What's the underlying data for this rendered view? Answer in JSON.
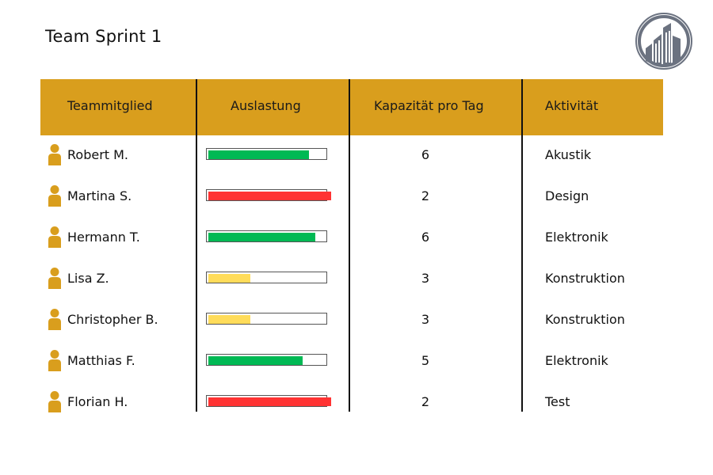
{
  "title": "Team Sprint 1",
  "logo_icon": "building-logo-icon",
  "colors": {
    "header": "#d99e1d",
    "icon": "#d99e1d",
    "green": "#00b954",
    "red": "#ff3333",
    "yellow": "#ffdc5a"
  },
  "headers": {
    "member": "Teammitglied",
    "utilization": "Auslastung",
    "capacity": "Kapazität pro Tag",
    "activity": "Aktivität"
  },
  "rows": [
    {
      "name": "Robert M.",
      "utilization": 0.82,
      "status": "green",
      "capacity": "6",
      "activity": "Akustik"
    },
    {
      "name": "Martina S.",
      "utilization": 1.0,
      "status": "red",
      "capacity": "2",
      "activity": "Design"
    },
    {
      "name": "Hermann T.",
      "utilization": 0.87,
      "status": "green",
      "capacity": "6",
      "activity": "Elektronik"
    },
    {
      "name": "Lisa Z.",
      "utilization": 0.34,
      "status": "yellow",
      "capacity": "3",
      "activity": "Konstruktion"
    },
    {
      "name": "Christopher B.",
      "utilization": 0.34,
      "status": "yellow",
      "capacity": "3",
      "activity": "Konstruktion"
    },
    {
      "name": "Matthias F.",
      "utilization": 0.77,
      "status": "green",
      "capacity": "5",
      "activity": "Elektronik"
    },
    {
      "name": "Florian H.",
      "utilization": 1.0,
      "status": "red",
      "capacity": "2",
      "activity": "Test"
    }
  ]
}
